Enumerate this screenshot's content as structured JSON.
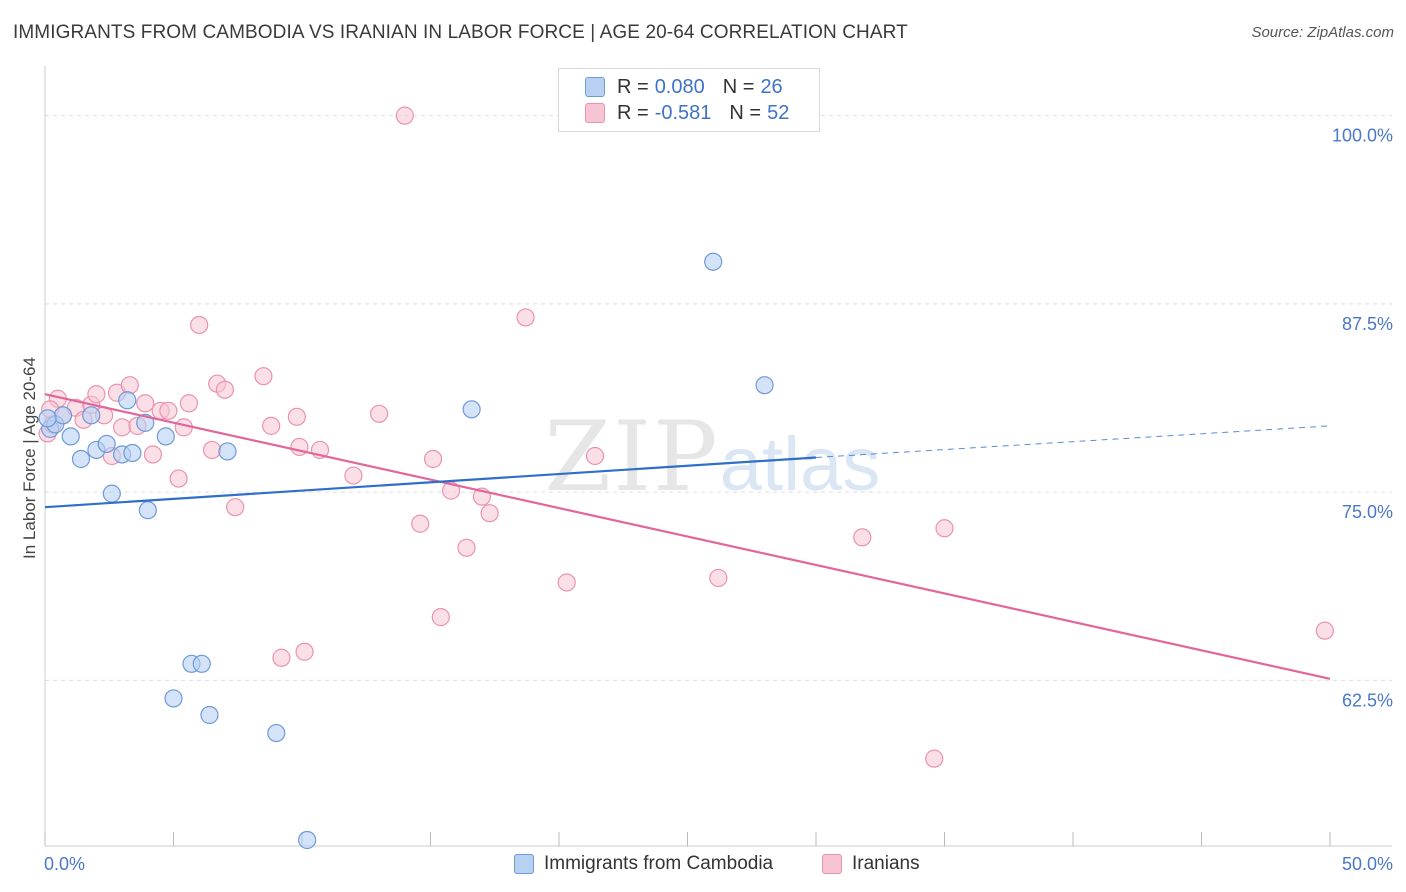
{
  "title": "IMMIGRANTS FROM CAMBODIA VS IRANIAN IN LABOR FORCE | AGE 20-64 CORRELATION CHART",
  "source": "Source: ZipAtlas.com",
  "watermark": {
    "zip": "ZIP",
    "atlas": "atlas"
  },
  "legend": {
    "r_label": "R =",
    "n_label": "N =",
    "series1": {
      "r": "0.080",
      "n": "26"
    },
    "series2": {
      "r": "-0.581",
      "n": "52"
    }
  },
  "bottom_legend": {
    "series1": "Immigrants from Cambodia",
    "series2": "Iranians"
  },
  "colors": {
    "series1_fill": "#b8d1f3",
    "series1_stroke": "#6f9ad8",
    "series1_line": "#2f6fca",
    "series2_fill": "#f7c4d3",
    "series2_stroke": "#ea93ae",
    "series2_line": "#e2669a",
    "grid": "#dddddd",
    "axis_text": "#4a78c8"
  },
  "chart_data": {
    "type": "scatter",
    "title": "IMMIGRANTS FROM CAMBODIA VS IRANIAN IN LABOR FORCE | AGE 20-64 CORRELATION CHART",
    "xlabel": "",
    "ylabel": "In Labor Force | Age 20-64",
    "xlim": [
      0,
      50
    ],
    "ylim": [
      51.5,
      102.5
    ],
    "x_tick_labels": [
      "0.0%",
      "50.0%"
    ],
    "y_ticks": [
      100.0,
      87.5,
      75.0,
      62.5
    ],
    "y_tick_labels": [
      "100.0%",
      "87.5%",
      "75.0%",
      "62.5%"
    ],
    "series": [
      {
        "name": "Immigrants from Cambodia",
        "r": 0.08,
        "n": 26,
        "points": [
          {
            "x": 0.2,
            "y": 79.2
          },
          {
            "x": 0.4,
            "y": 79.5
          },
          {
            "x": 0.7,
            "y": 80.1
          },
          {
            "x": 1.0,
            "y": 78.7
          },
          {
            "x": 1.4,
            "y": 77.2
          },
          {
            "x": 1.8,
            "y": 80.1
          },
          {
            "x": 2.0,
            "y": 77.8
          },
          {
            "x": 2.4,
            "y": 78.2
          },
          {
            "x": 2.6,
            "y": 74.9
          },
          {
            "x": 3.0,
            "y": 77.5
          },
          {
            "x": 3.2,
            "y": 81.1
          },
          {
            "x": 3.4,
            "y": 77.6
          },
          {
            "x": 3.9,
            "y": 79.6
          },
          {
            "x": 4.0,
            "y": 73.8
          },
          {
            "x": 4.7,
            "y": 78.7
          },
          {
            "x": 5.0,
            "y": 61.3
          },
          {
            "x": 5.7,
            "y": 63.6
          },
          {
            "x": 6.1,
            "y": 63.6
          },
          {
            "x": 6.4,
            "y": 60.2
          },
          {
            "x": 7.1,
            "y": 77.7
          },
          {
            "x": 9.0,
            "y": 59.0
          },
          {
            "x": 10.2,
            "y": 51.9
          },
          {
            "x": 16.6,
            "y": 80.5
          },
          {
            "x": 26.0,
            "y": 90.3
          },
          {
            "x": 28.0,
            "y": 82.1
          },
          {
            "x": 0.1,
            "y": 79.9
          }
        ],
        "trend": {
          "x1": 0,
          "y1": 74.0,
          "x2": 30,
          "y2": 77.3,
          "dashed_to_x": 50,
          "dashed_to_y": 79.4
        }
      },
      {
        "name": "Iranians",
        "r": -0.581,
        "n": 52,
        "points": [
          {
            "x": 0.1,
            "y": 78.9
          },
          {
            "x": 0.3,
            "y": 79.5
          },
          {
            "x": 0.5,
            "y": 81.2
          },
          {
            "x": 0.7,
            "y": 80.1
          },
          {
            "x": 1.2,
            "y": 80.6
          },
          {
            "x": 1.5,
            "y": 79.8
          },
          {
            "x": 1.8,
            "y": 80.8
          },
          {
            "x": 2.0,
            "y": 81.5
          },
          {
            "x": 2.3,
            "y": 80.1
          },
          {
            "x": 2.6,
            "y": 77.4
          },
          {
            "x": 2.8,
            "y": 81.6
          },
          {
            "x": 3.0,
            "y": 79.3
          },
          {
            "x": 3.3,
            "y": 82.1
          },
          {
            "x": 3.6,
            "y": 79.4
          },
          {
            "x": 3.9,
            "y": 80.9
          },
          {
            "x": 4.2,
            "y": 77.5
          },
          {
            "x": 4.5,
            "y": 80.4
          },
          {
            "x": 4.8,
            "y": 80.4
          },
          {
            "x": 5.2,
            "y": 75.9
          },
          {
            "x": 5.4,
            "y": 79.3
          },
          {
            "x": 5.6,
            "y": 80.9
          },
          {
            "x": 6.0,
            "y": 86.1
          },
          {
            "x": 6.5,
            "y": 77.8
          },
          {
            "x": 6.7,
            "y": 82.2
          },
          {
            "x": 7.0,
            "y": 81.8
          },
          {
            "x": 7.4,
            "y": 74.0
          },
          {
            "x": 8.5,
            "y": 82.7
          },
          {
            "x": 8.8,
            "y": 79.4
          },
          {
            "x": 9.2,
            "y": 64.0
          },
          {
            "x": 9.8,
            "y": 80.0
          },
          {
            "x": 9.9,
            "y": 78.0
          },
          {
            "x": 10.1,
            "y": 64.4
          },
          {
            "x": 10.7,
            "y": 77.8
          },
          {
            "x": 12.0,
            "y": 76.1
          },
          {
            "x": 13.0,
            "y": 80.2
          },
          {
            "x": 14.6,
            "y": 72.9
          },
          {
            "x": 14.0,
            "y": 100.0
          },
          {
            "x": 15.1,
            "y": 77.2
          },
          {
            "x": 15.4,
            "y": 66.7
          },
          {
            "x": 15.8,
            "y": 75.1
          },
          {
            "x": 16.4,
            "y": 71.3
          },
          {
            "x": 17.0,
            "y": 74.7
          },
          {
            "x": 17.3,
            "y": 73.6
          },
          {
            "x": 18.7,
            "y": 86.6
          },
          {
            "x": 20.3,
            "y": 69.0
          },
          {
            "x": 21.4,
            "y": 77.4
          },
          {
            "x": 26.2,
            "y": 69.3
          },
          {
            "x": 31.8,
            "y": 72.0
          },
          {
            "x": 34.6,
            "y": 57.3
          },
          {
            "x": 35.0,
            "y": 72.6
          },
          {
            "x": 49.8,
            "y": 65.8
          },
          {
            "x": 0.2,
            "y": 80.5
          }
        ],
        "trend": {
          "x1": 0,
          "y1": 81.5,
          "x2": 50,
          "y2": 62.6
        }
      }
    ]
  }
}
